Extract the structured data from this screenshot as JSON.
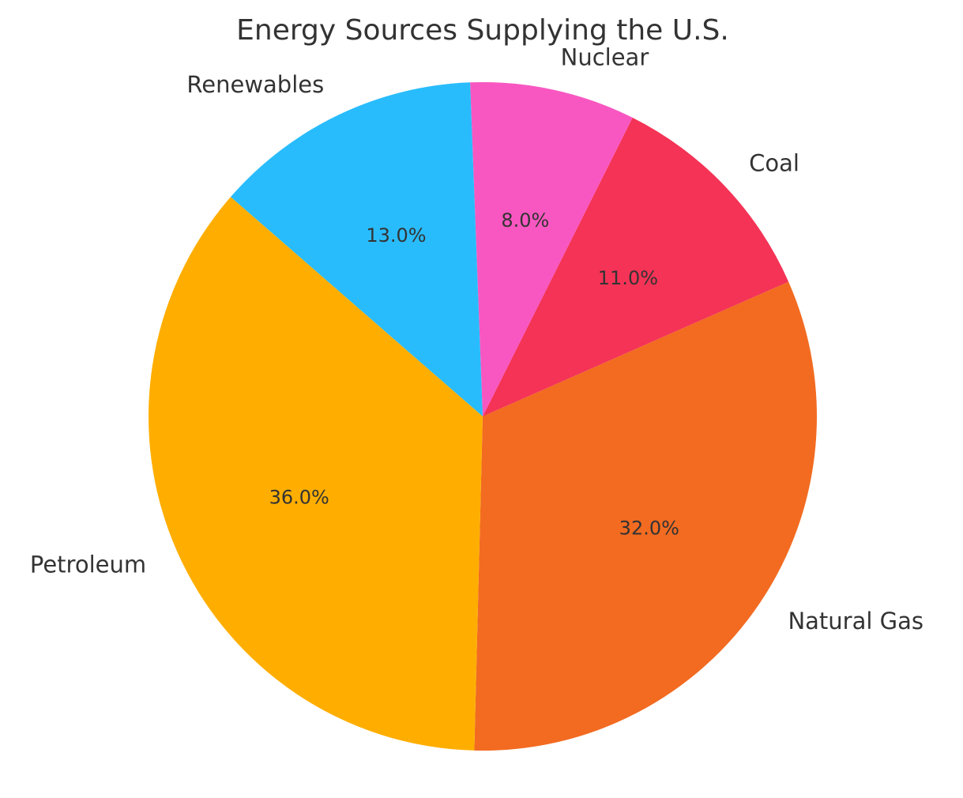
{
  "chart_data": {
    "type": "pie",
    "title": "Energy Sources Supplying the U.S.",
    "slices": [
      {
        "label": "Natural Gas",
        "value": 32.0,
        "pct_label": "32.0%",
        "color": "#F26B21"
      },
      {
        "label": "Coal",
        "value": 11.0,
        "pct_label": "11.0%",
        "color": "#F43356"
      },
      {
        "label": "Nuclear",
        "value": 8.0,
        "pct_label": "8.0%",
        "color": "#F857C1"
      },
      {
        "label": "Renewables",
        "value": 13.0,
        "pct_label": "13.0%",
        "color": "#29BCFD"
      },
      {
        "label": "Petroleum",
        "value": 36.0,
        "pct_label": "36.0%",
        "color": "#FFAE00"
      }
    ],
    "start_angle_deg": -91.44,
    "direction": "counterclockwise",
    "autopct": true,
    "legend": "none"
  }
}
